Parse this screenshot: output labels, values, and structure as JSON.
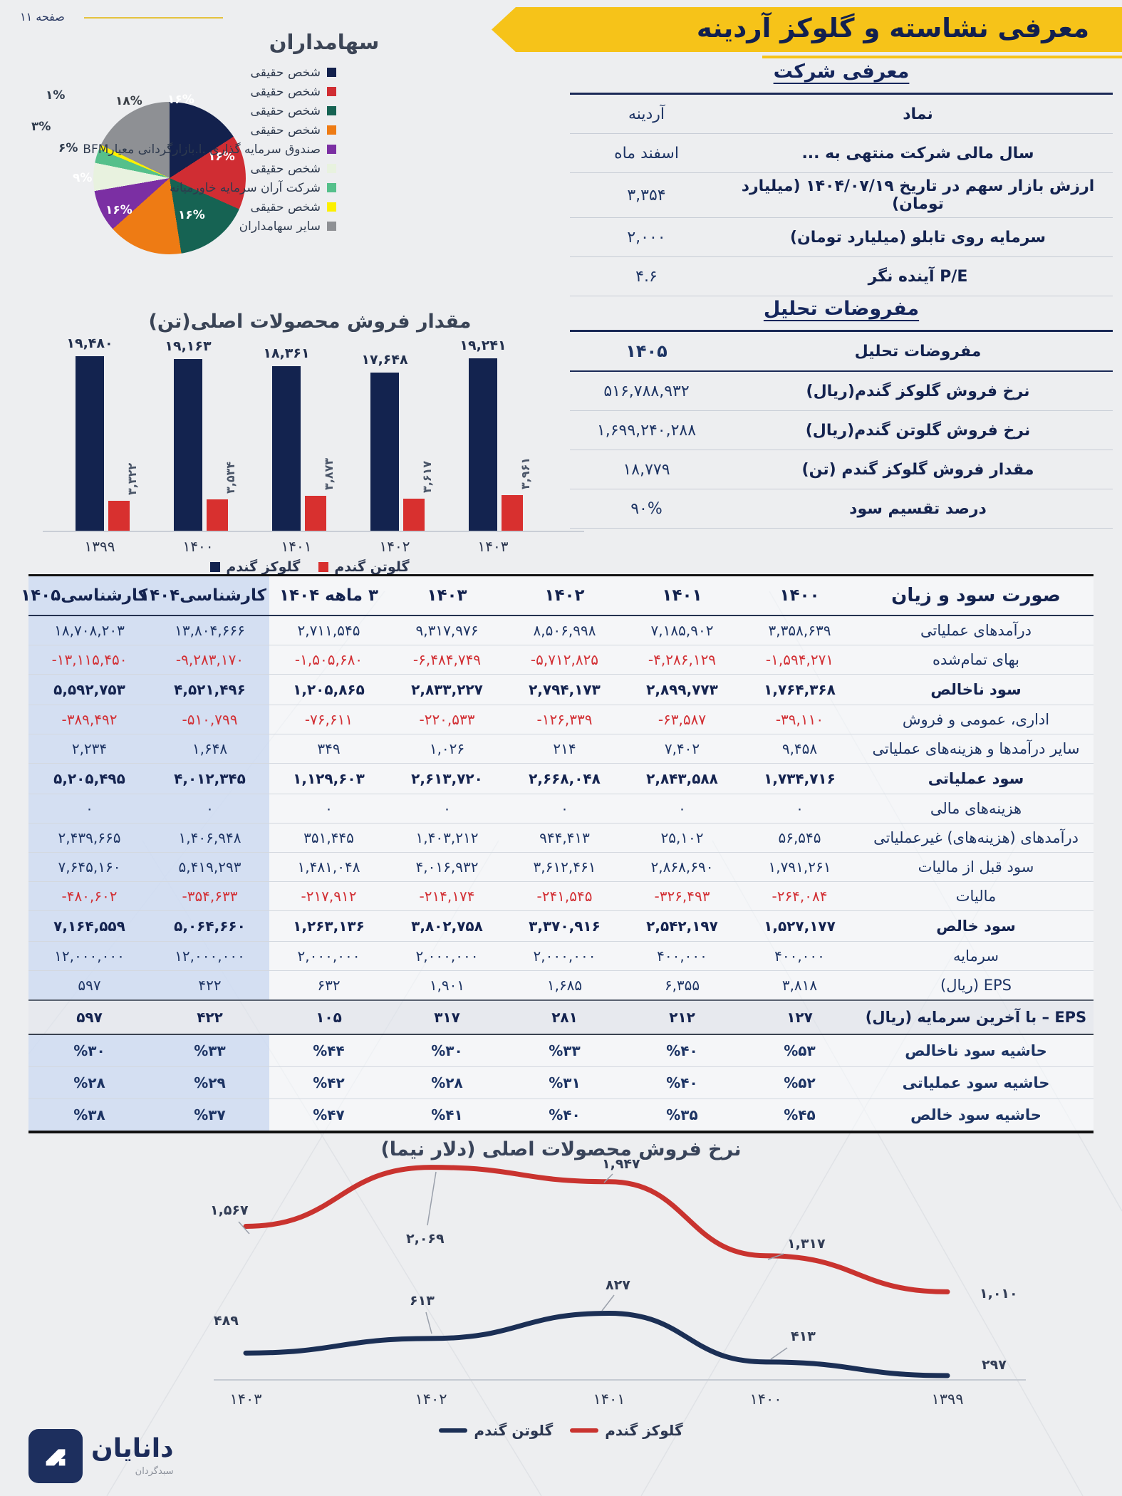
{
  "page": {
    "label": "صفحه ۱۱",
    "title": "معرفی نشاسته و گلوکز آردینه",
    "accent_yellow": "#f6c319",
    "navy": "#16265c",
    "red": "#d22f34"
  },
  "company": {
    "heading": "معرفی شرکت",
    "rows": [
      {
        "label": "نماد",
        "value": "آردینه"
      },
      {
        "label": "سال مالی شرکت منتهی به ...",
        "value": "اسفند ماه"
      },
      {
        "label": "ارزش بازار سهم در تاریخ ۱۴۰۴/۰۷/۱۹ (میلیارد تومان)",
        "value": "۳,۳۵۴"
      },
      {
        "label": "سرمایه روی تابلو (میلیارد تومان)",
        "value": "۲,۰۰۰"
      },
      {
        "label": "P/E آینده نگر",
        "value": "۴.۶"
      }
    ]
  },
  "assumptions": {
    "heading": "مفروضات تحلیل",
    "header_label": "مفروضات تحلیل",
    "header_value": "۱۴۰۵",
    "rows": [
      {
        "label": "نرخ فروش گلوکز گندم(ریال)",
        "value": "۵۱۶,۷۸۸,۹۳۲"
      },
      {
        "label": "نرخ فروش گلوتن گندم(ریال)",
        "value": "۱,۶۹۹,۲۴۰,۲۸۸"
      },
      {
        "label": "مقدار فروش گلوکز گندم (تن)",
        "value": "۱۸,۷۷۹"
      },
      {
        "label": "درصد تقسیم سود",
        "value": "۹۰%"
      }
    ]
  },
  "income": {
    "headers": [
      "صورت سود و زیان",
      "۱۴۰۰",
      "۱۴۰۱",
      "۱۴۰۲",
      "۱۴۰۳",
      "۳ ماهه ۱۴۰۴",
      "کارشناسی۱۴۰۴",
      "کارشناسی۱۴۰۵"
    ],
    "rows": [
      {
        "label": "درآمدهای عملیاتی",
        "style": "normal",
        "values": [
          "۳,۳۵۸,۶۳۹",
          "۷,۱۸۵,۹۰۲",
          "۸,۵۰۶,۹۹۸",
          "۹,۳۱۷,۹۷۶",
          "۲,۷۱۱,۵۴۵",
          "۱۳,۸۰۴,۶۶۶",
          "۱۸,۷۰۸,۲۰۳"
        ]
      },
      {
        "label": "بهای تمام‌شده",
        "style": "normal",
        "values": [
          "-۱,۵۹۴,۲۷۱",
          "-۴,۲۸۶,۱۲۹",
          "-۵,۷۱۲,۸۲۵",
          "-۶,۴۸۴,۷۴۹",
          "-۱,۵۰۵,۶۸۰",
          "-۹,۲۸۳,۱۷۰",
          "-۱۳,۱۱۵,۴۵۰"
        ]
      },
      {
        "label": "سود ناخالص",
        "style": "bold",
        "values": [
          "۱,۷۶۴,۳۶۸",
          "۲,۸۹۹,۷۷۳",
          "۲,۷۹۴,۱۷۳",
          "۲,۸۳۳,۲۲۷",
          "۱,۲۰۵,۸۶۵",
          "۴,۵۲۱,۴۹۶",
          "۵,۵۹۲,۷۵۳"
        ]
      },
      {
        "label": "اداری، عمومی و فروش",
        "style": "normal",
        "values": [
          "-۳۹,۱۱۰",
          "-۶۳,۵۸۷",
          "-۱۲۶,۳۳۹",
          "-۲۲۰,۵۳۳",
          "-۷۶,۶۱۱",
          "-۵۱۰,۷۹۹",
          "-۳۸۹,۴۹۲"
        ]
      },
      {
        "label": "سایر درآمدها و هزینه‌های عملیاتی",
        "style": "normal",
        "values": [
          "۹,۴۵۸",
          "۷,۴۰۲",
          "۲۱۴",
          "۱,۰۲۶",
          "۳۴۹",
          "۱,۶۴۸",
          "۲,۲۳۴"
        ]
      },
      {
        "label": "سود عملیاتی",
        "style": "bold",
        "values": [
          "۱,۷۳۴,۷۱۶",
          "۲,۸۴۳,۵۸۸",
          "۲,۶۶۸,۰۴۸",
          "۲,۶۱۳,۷۲۰",
          "۱,۱۲۹,۶۰۳",
          "۴,۰۱۲,۳۴۵",
          "۵,۲۰۵,۴۹۵"
        ]
      },
      {
        "label": "هزینه‌های مالی",
        "style": "normal",
        "values": [
          "۰",
          "۰",
          "۰",
          "۰",
          "۰",
          "۰",
          "۰"
        ]
      },
      {
        "label": "درآمدهای (هزینه‌های) غیرعملیاتی",
        "style": "normal",
        "values": [
          "۵۶,۵۴۵",
          "۲۵,۱۰۲",
          "۹۴۴,۴۱۳",
          "۱,۴۰۳,۲۱۲",
          "۳۵۱,۴۴۵",
          "۱,۴۰۶,۹۴۸",
          "۲,۴۳۹,۶۶۵"
        ]
      },
      {
        "label": "سود قبل از مالیات",
        "style": "normal",
        "values": [
          "۱,۷۹۱,۲۶۱",
          "۲,۸۶۸,۶۹۰",
          "۳,۶۱۲,۴۶۱",
          "۴,۰۱۶,۹۳۲",
          "۱,۴۸۱,۰۴۸",
          "۵,۴۱۹,۲۹۳",
          "۷,۶۴۵,۱۶۰"
        ]
      },
      {
        "label": "مالیات",
        "style": "normal",
        "values": [
          "-۲۶۴,۰۸۴",
          "-۳۲۶,۴۹۳",
          "-۲۴۱,۵۴۵",
          "-۲۱۴,۱۷۴",
          "-۲۱۷,۹۱۲",
          "-۳۵۴,۶۳۳",
          "-۴۸۰,۶۰۲"
        ]
      },
      {
        "label": "سود خالص",
        "style": "bold",
        "values": [
          "۱,۵۲۷,۱۷۷",
          "۲,۵۴۲,۱۹۷",
          "۳,۳۷۰,۹۱۶",
          "۳,۸۰۲,۷۵۸",
          "۱,۲۶۳,۱۳۶",
          "۵,۰۶۴,۶۶۰",
          "۷,۱۶۴,۵۵۹"
        ]
      },
      {
        "label": "سرمایه",
        "style": "normal",
        "values": [
          "۴۰۰,۰۰۰",
          "۴۰۰,۰۰۰",
          "۲,۰۰۰,۰۰۰",
          "۲,۰۰۰,۰۰۰",
          "۲,۰۰۰,۰۰۰",
          "۱۲,۰۰۰,۰۰۰",
          "۱۲,۰۰۰,۰۰۰"
        ]
      },
      {
        "label": "EPS (ریال)",
        "style": "normal",
        "values": [
          "۳,۸۱۸",
          "۶,۳۵۵",
          "۱,۶۸۵",
          "۱,۹۰۱",
          "۶۳۲",
          "۴۲۲",
          "۵۹۷"
        ]
      },
      {
        "label": "EPS – با آخرین سرمایه (ریال)",
        "style": "epsband",
        "values": [
          "۱۲۷",
          "۲۱۲",
          "۲۸۱",
          "۳۱۷",
          "۱۰۵",
          "۴۲۲",
          "۵۹۷"
        ]
      },
      {
        "label": "حاشیه سود ناخالص",
        "style": "pct",
        "values": [
          "%۵۳",
          "%۴۰",
          "%۳۳",
          "%۳۰",
          "%۴۴",
          "%۳۳",
          "%۳۰"
        ]
      },
      {
        "label": "حاشیه سود عملیاتی",
        "style": "pct",
        "values": [
          "%۵۲",
          "%۴۰",
          "%۳۱",
          "%۲۸",
          "%۴۲",
          "%۲۹",
          "%۲۸"
        ]
      },
      {
        "label": "حاشیه سود خالص",
        "style": "pct",
        "values": [
          "%۴۵",
          "%۳۵",
          "%۴۰",
          "%۴۱",
          "%۴۷",
          "%۳۷",
          "%۳۸"
        ]
      }
    ]
  },
  "chart_data": [
    {
      "id": "shareholders-pie",
      "type": "pie",
      "title": "سهامداران",
      "legend_position": "right",
      "slices": [
        {
          "label": "شخص حقیقی",
          "value": 16,
          "value_label": "۱۶%",
          "color": "#13214d"
        },
        {
          "label": "شخص حقیقی",
          "value": 16,
          "value_label": "۱۶%",
          "color": "#d02d33"
        },
        {
          "label": "شخص حقیقی",
          "value": 16,
          "value_label": "۱۶%",
          "color": "#166353"
        },
        {
          "label": "شخص حقیقی",
          "value": 16,
          "value_label": "۱۶%",
          "color": "#ee7b14"
        },
        {
          "label": "صندوق سرمایه گذاری .ا.بازارگردانی معیارBFM",
          "value": 9,
          "value_label": "۹%",
          "color": "#7b2fa3"
        },
        {
          "label": "شخص حقیقی",
          "value": 6,
          "value_label": "۶%",
          "color": "#e8f2df"
        },
        {
          "label": "شرکت آران سرمایه خاورمیانه",
          "value": 3,
          "value_label": "۳%",
          "color": "#55c08b"
        },
        {
          "label": "شخص حقیقی",
          "value": 1,
          "value_label": "۱%",
          "color": "#fcf000"
        },
        {
          "label": "سایر سهامداران",
          "value": 18,
          "value_label": "۱۸%",
          "color": "#8e9094"
        }
      ]
    },
    {
      "id": "sales-volume-bar",
      "type": "bar",
      "title": "مقدار فروش محصولات اصلی(تن)",
      "categories": [
        "۱۳۹۹",
        "۱۴۰۰",
        "۱۴۰۱",
        "۱۴۰۲",
        "۱۴۰۳"
      ],
      "ylim": [
        0,
        19480
      ],
      "series": [
        {
          "name": "گلوکز گندم",
          "color": "#13234f",
          "values": [
            19480,
            19163,
            18361,
            17648,
            19241
          ],
          "labels": [
            "۱۹,۴۸۰",
            "۱۹,۱۶۳",
            "۱۸,۳۶۱",
            "۱۷,۶۴۸",
            "۱۹,۲۴۱"
          ]
        },
        {
          "name": "گلوتن گندم",
          "color": "#d8302f",
          "values": [
            3322,
            3534,
            3873,
            3617,
            3961
          ],
          "labels": [
            "۳,۳۲۲",
            "۳,۵۳۴",
            "۳,۸۷۳",
            "۳,۶۱۷",
            "۳,۹۶۱"
          ]
        }
      ]
    },
    {
      "id": "sales-price-line",
      "type": "line",
      "title": "نرخ فروش محصولات اصلی (دلار نیما)",
      "categories": [
        "۱۴۰۳",
        "۱۴۰۲",
        "۱۴۰۱",
        "۱۴۰۰",
        "۱۳۹۹"
      ],
      "series": [
        {
          "name": "گلوتن گندم",
          "color": "#1b2f55",
          "values": [
            489,
            613,
            827,
            413,
            297
          ],
          "labels": [
            "۴۸۹",
            "۶۱۳",
            "۸۲۷",
            "۴۱۳",
            "۲۹۷"
          ]
        },
        {
          "name": "گلوکز گندم",
          "color": "#c9332f",
          "values": [
            1567,
            2069,
            1947,
            1317,
            1010
          ],
          "labels": [
            "۱,۵۶۷",
            "۲,۰۶۹",
            "۱,۹۴۷",
            "۱,۳۱۷",
            "۱,۰۱۰"
          ]
        }
      ]
    }
  ],
  "logo": {
    "name": "دانایان",
    "subtitle": "سبدگردان"
  }
}
